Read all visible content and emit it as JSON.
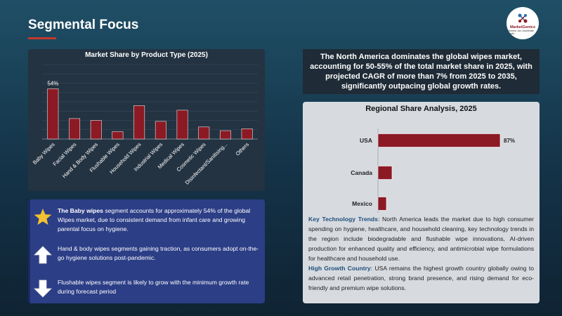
{
  "header": {
    "title": "Segmental Focus"
  },
  "logo": {
    "brand": "MarketGenics",
    "tagline": "Informed. Act. Accelerate Growth"
  },
  "chart_data": [
    {
      "type": "bar",
      "title": "Market Share by Product Type (2025)",
      "categories": [
        "Baby Wipes",
        "Facial Wipes",
        "Hand & Body Wipes",
        "Flushable Wipes",
        "Household Wipes",
        "Industrial Wipes",
        "Medical Wipes",
        "Cosmetic Wipes",
        "Disinfectant/Sanitising...",
        "Others"
      ],
      "values": [
        54,
        22,
        20,
        8,
        36,
        19,
        31,
        13,
        9,
        11
      ],
      "data_labels": {
        "Baby Wipes": "54%"
      },
      "ylim": [
        0,
        80
      ],
      "grid": true,
      "bar_color": "#8b1a24"
    },
    {
      "type": "bar",
      "orientation": "horizontal",
      "title": "Regional Share Analysis, 2025",
      "categories": [
        "USA",
        "Canada",
        "Mexico"
      ],
      "values": [
        87,
        10,
        6
      ],
      "data_labels": {
        "USA": "87%"
      },
      "xlim": [
        0,
        100
      ],
      "bar_color": "#8b1a24"
    }
  ],
  "highlight": {
    "text": "The North America dominates the global wipes market, accounting for 50-55% of the total market share in 2025, with projected CAGR of more than 7% from 2025 to 2035, significantly outpacing global growth rates."
  },
  "regional": {
    "key_trends_label": "Key Technology Trends",
    "key_trends_text": ": North America leads the market due to high consumer spending on hygiene, healthcare, and household cleaning, key technology trends in the region include biodegradable and flushable wipe innovations, AI-driven production for enhanced quality and efficiency, and antimicrobial wipe formulations for healthcare and household use.",
    "growth_label": "High Growth Country",
    "growth_text": ": USA remains the highest growth country globally owing to advanced retail penetration, strong brand presence, and rising demand for eco-friendly and premium wipe solutions."
  },
  "insights": [
    {
      "icon": "star-icon",
      "bold": "The Baby wipes",
      "text": " segment accounts for approximately 54% of the global Wipes market, due to consistent demand from infant care and growing parental focus on hygiene."
    },
    {
      "icon": "arrow-up-icon",
      "bold": "",
      "text": "Hand & body wipes segments gaining traction, as consumers adopt on-the-go hygiene solutions post-pandemic."
    },
    {
      "icon": "arrow-down-icon",
      "bold": "",
      "text": "Flushable wipes segment is likely to grow with the minimum growth rate during forecast period"
    }
  ],
  "colors": {
    "accent": "#c0392b",
    "bar": "#8b1a24",
    "highlight_text": "#1f4e79"
  }
}
